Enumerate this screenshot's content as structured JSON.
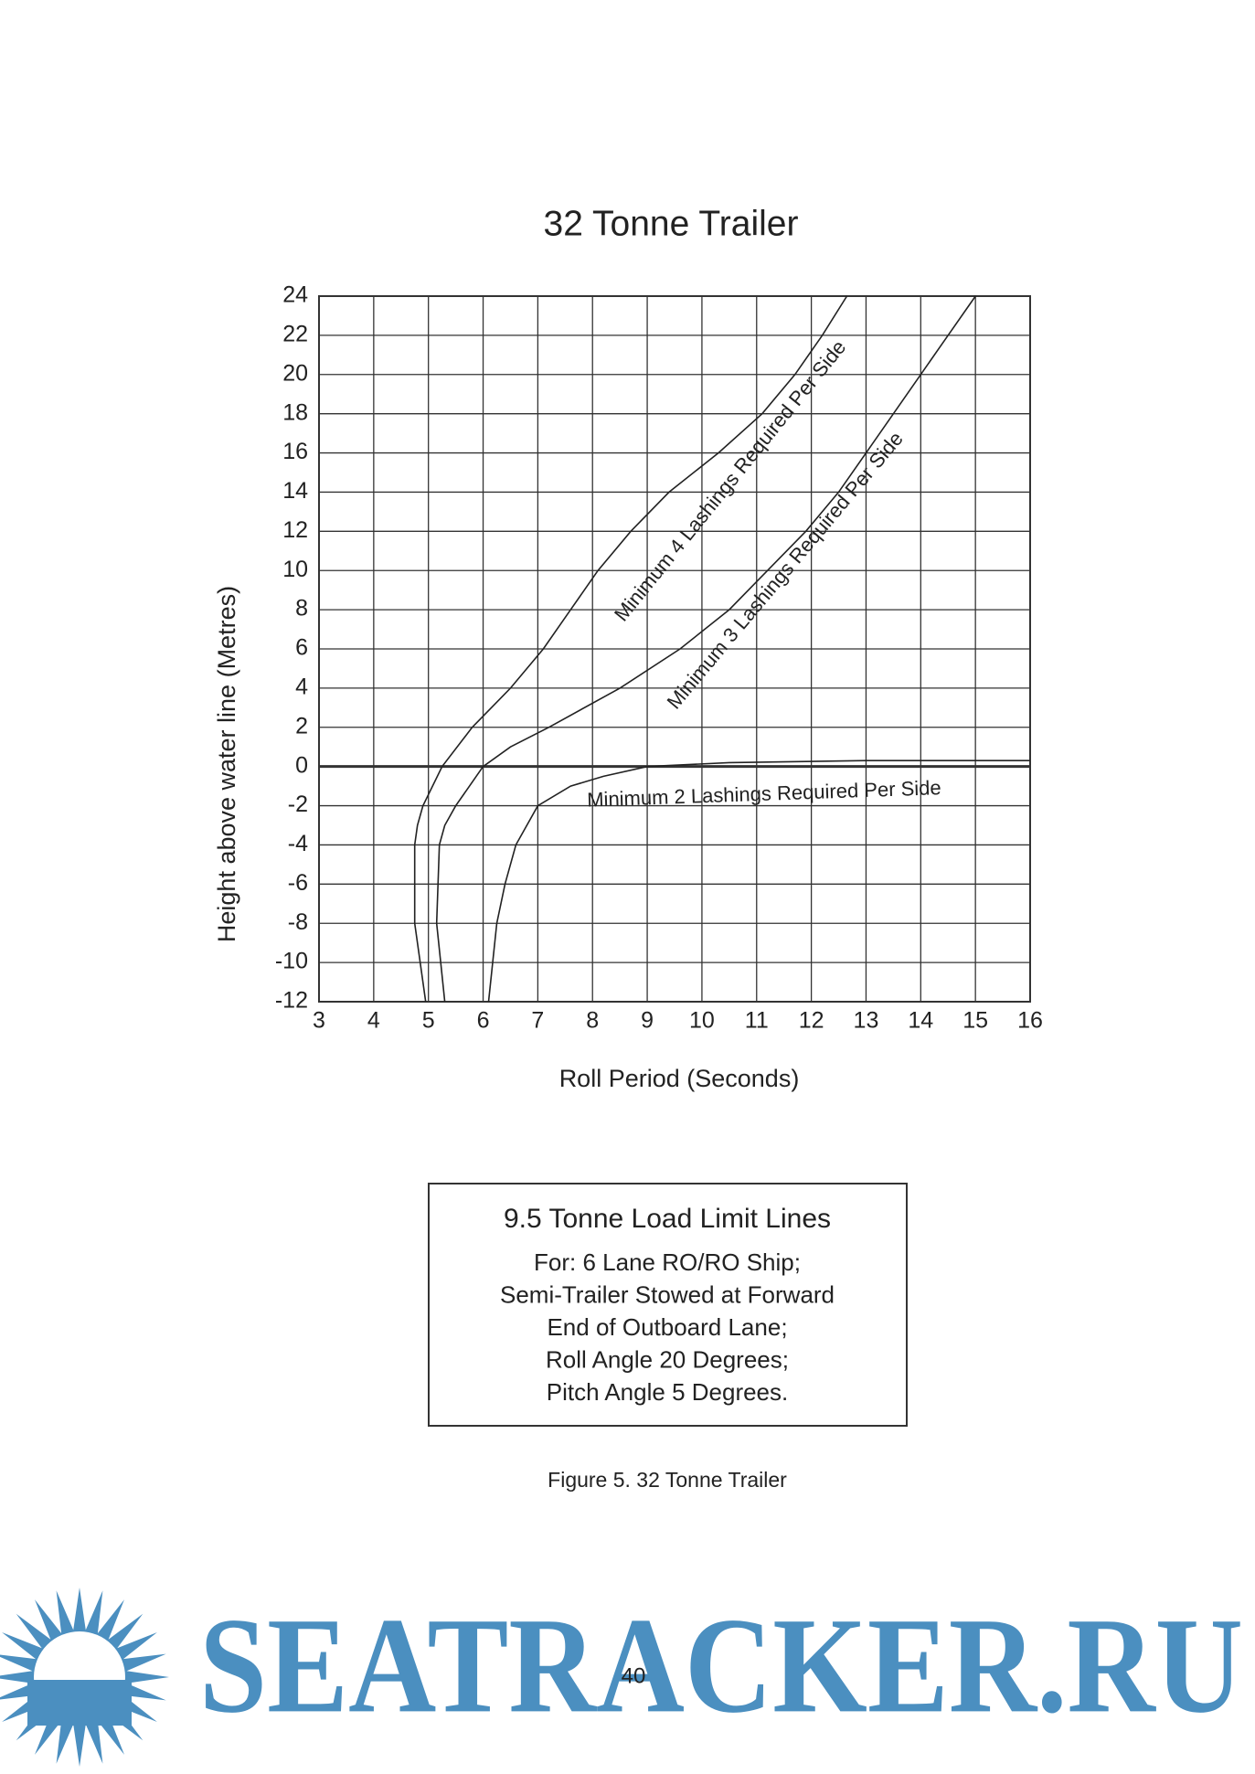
{
  "chart_data": {
    "type": "line",
    "title": "32 Tonne Trailer",
    "xlabel": "Roll Period (Seconds)",
    "ylabel": "Height above water line (Metres)",
    "xlim": [
      3,
      16
    ],
    "xticks": [
      3,
      4,
      5,
      6,
      7,
      8,
      9,
      10,
      11,
      12,
      13,
      14,
      15,
      16
    ],
    "ylim": [
      -12,
      24
    ],
    "yticks": [
      -12,
      -10,
      -8,
      -6,
      -4,
      -2,
      0,
      2,
      4,
      6,
      8,
      10,
      12,
      14,
      16,
      18,
      20,
      22,
      24
    ],
    "grid": true,
    "series": [
      {
        "name": "Minimum 4 Lashings Required Per Side",
        "color": "#222222",
        "x": [
          4.95,
          4.75,
          4.75,
          4.8,
          4.9,
          5.25,
          5.8,
          6.5,
          7.1,
          7.6,
          8.1,
          8.7,
          9.4,
          10.3,
          11.1,
          11.7,
          12.2,
          12.65
        ],
        "values": [
          -12,
          -8,
          -4,
          -3,
          -2,
          0,
          2,
          4,
          6,
          8,
          10,
          12,
          14,
          16,
          18,
          20,
          22,
          24
        ]
      },
      {
        "name": "Minimum 3 Lashings Required Per Side",
        "color": "#222222",
        "x": [
          5.3,
          5.15,
          5.2,
          5.3,
          5.5,
          6.0,
          6.5,
          7.2,
          8.5,
          9.6,
          10.5,
          11.2,
          11.9,
          12.5,
          13.0,
          13.5,
          14.0,
          14.5,
          15.0
        ],
        "values": [
          -12,
          -8,
          -4,
          -3,
          -2,
          0,
          1,
          2,
          4,
          6,
          8,
          10,
          12,
          14,
          16,
          18,
          20,
          22,
          24
        ]
      },
      {
        "name": "Minimum 2 Lashings Required Per Side",
        "color": "#222222",
        "x": [
          6.1,
          6.25,
          6.4,
          6.6,
          7.0,
          7.6,
          8.2,
          9.0,
          10.5,
          13,
          16
        ],
        "values": [
          -12,
          -8,
          -6,
          -4,
          -2,
          -1,
          -0.5,
          0,
          0.2,
          0.3,
          0.3
        ]
      }
    ]
  },
  "info_box": {
    "title": "9.5 Tonne Load Limit Lines",
    "lines": [
      "For: 6 Lane RO/RO Ship;",
      "Semi-Trailer Stowed at Forward",
      "End of Outboard Lane;",
      "Roll Angle 20 Degrees;",
      "Pitch Angle 5 Degrees."
    ]
  },
  "caption": "Figure 5.  32 Tonne Trailer",
  "page_number": "40",
  "watermark": "SEATRACKER.RU"
}
